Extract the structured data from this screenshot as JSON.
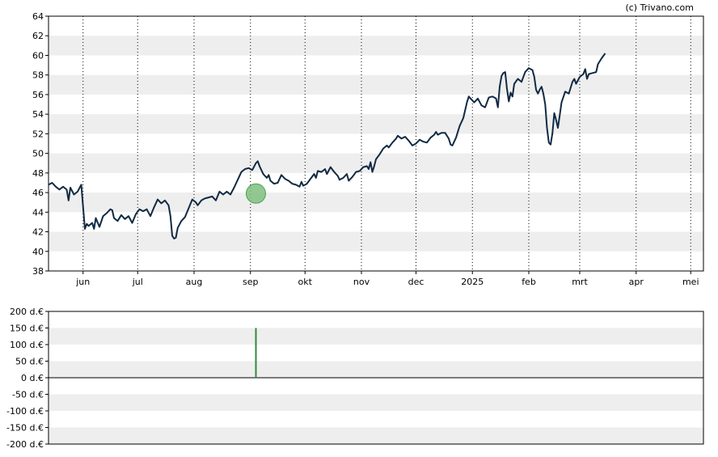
{
  "credit": "(c) Trivano.com",
  "colors": {
    "band": "#eeeeee",
    "frame": "#000000",
    "price_line": "#102a43",
    "marker_fill": "#7fbf7f",
    "marker_stroke": "#4f9f4f",
    "volume_bar": "#2e8b3e"
  },
  "chart_data": [
    {
      "type": "line",
      "x_ticks": [
        {
          "label": "jun",
          "day": 19
        },
        {
          "label": "jul",
          "day": 49
        },
        {
          "label": "aug",
          "day": 80
        },
        {
          "label": "sep",
          "day": 111
        },
        {
          "label": "okt",
          "day": 141
        },
        {
          "label": "nov",
          "day": 172
        },
        {
          "label": "dec",
          "day": 202
        },
        {
          "label": "2025",
          "day": 233
        },
        {
          "label": "feb",
          "day": 264
        },
        {
          "label": "mrt",
          "day": 292
        },
        {
          "label": "apr",
          "day": 323
        },
        {
          "label": "mei",
          "day": 353
        }
      ],
      "x_range": [
        0,
        360
      ],
      "y_ticks": [
        "38",
        "40",
        "42",
        "44",
        "46",
        "48",
        "50",
        "52",
        "54",
        "56",
        "58",
        "60",
        "62",
        "64"
      ],
      "ylim": [
        38,
        64
      ],
      "grid": "horizontal bands, vertical dotted month lines",
      "marker": {
        "day": 114,
        "value": 45.9
      },
      "series": [
        {
          "points": [
            [
              0,
              46.8
            ],
            [
              2,
              47
            ],
            [
              4,
              46.6
            ],
            [
              6,
              46.3
            ],
            [
              8,
              46.6
            ],
            [
              10,
              46.3
            ],
            [
              11,
              45.2
            ],
            [
              12,
              46.5
            ],
            [
              14,
              45.8
            ],
            [
              16,
              46.1
            ],
            [
              18,
              46.8
            ],
            [
              19,
              44.5
            ],
            [
              20,
              42.3
            ],
            [
              21,
              42.8
            ],
            [
              22,
              42.6
            ],
            [
              24,
              42.9
            ],
            [
              25,
              42.3
            ],
            [
              26,
              43.4
            ],
            [
              28,
              42.5
            ],
            [
              30,
              43.6
            ],
            [
              32,
              43.9
            ],
            [
              34,
              44.3
            ],
            [
              35,
              44.2
            ],
            [
              36,
              43.4
            ],
            [
              38,
              43.1
            ],
            [
              40,
              43.7
            ],
            [
              42,
              43.3
            ],
            [
              44,
              43.6
            ],
            [
              46,
              42.9
            ],
            [
              48,
              43.8
            ],
            [
              50,
              44.3
            ],
            [
              52,
              44.1
            ],
            [
              54,
              44.3
            ],
            [
              56,
              43.6
            ],
            [
              58,
              44.5
            ],
            [
              60,
              45.3
            ],
            [
              62,
              44.9
            ],
            [
              64,
              45.2
            ],
            [
              66,
              44.7
            ],
            [
              67,
              43.6
            ],
            [
              68,
              41.6
            ],
            [
              69,
              41.3
            ],
            [
              70,
              41.4
            ],
            [
              71,
              42.4
            ],
            [
              73,
              43.1
            ],
            [
              75,
              43.5
            ],
            [
              77,
              44.4
            ],
            [
              79,
              45.3
            ],
            [
              81,
              45
            ],
            [
              82,
              44.7
            ],
            [
              84,
              45.2
            ],
            [
              86,
              45.4
            ],
            [
              88,
              45.5
            ],
            [
              90,
              45.6
            ],
            [
              92,
              45.2
            ],
            [
              94,
              46.1
            ],
            [
              96,
              45.8
            ],
            [
              98,
              46.1
            ],
            [
              100,
              45.8
            ],
            [
              102,
              46.5
            ],
            [
              104,
              47.3
            ],
            [
              106,
              48.1
            ],
            [
              108,
              48.4
            ],
            [
              110,
              48.5
            ],
            [
              112,
              48.3
            ],
            [
              114,
              49
            ],
            [
              115,
              49.2
            ],
            [
              116,
              48.7
            ],
            [
              118,
              47.9
            ],
            [
              120,
              47.5
            ],
            [
              121,
              47.8
            ],
            [
              122,
              47.2
            ],
            [
              124,
              46.9
            ],
            [
              126,
              47
            ],
            [
              128,
              47.8
            ],
            [
              130,
              47.4
            ],
            [
              132,
              47.2
            ],
            [
              134,
              46.9
            ],
            [
              136,
              46.8
            ],
            [
              138,
              46.6
            ],
            [
              139,
              47.1
            ],
            [
              140,
              46.7
            ],
            [
              142,
              46.9
            ],
            [
              144,
              47.4
            ],
            [
              146,
              47.9
            ],
            [
              147,
              47.5
            ],
            [
              148,
              48.2
            ],
            [
              150,
              48.1
            ],
            [
              152,
              48.4
            ],
            [
              153,
              47.9
            ],
            [
              155,
              48.6
            ],
            [
              157,
              48.1
            ],
            [
              159,
              47.7
            ],
            [
              160,
              47.3
            ],
            [
              162,
              47.5
            ],
            [
              164,
              47.9
            ],
            [
              165,
              47.2
            ],
            [
              167,
              47.6
            ],
            [
              169,
              48.1
            ],
            [
              171,
              48.2
            ],
            [
              173,
              48.6
            ],
            [
              175,
              48.7
            ],
            [
              176,
              48.4
            ],
            [
              177,
              49.1
            ],
            [
              178,
              48.1
            ],
            [
              179,
              48.7
            ],
            [
              180,
              49.4
            ],
            [
              182,
              49.9
            ],
            [
              184,
              50.5
            ],
            [
              186,
              50.8
            ],
            [
              187,
              50.6
            ],
            [
              189,
              51.1
            ],
            [
              191,
              51.5
            ],
            [
              192,
              51.8
            ],
            [
              194,
              51.5
            ],
            [
              196,
              51.7
            ],
            [
              198,
              51.3
            ],
            [
              200,
              50.8
            ],
            [
              202,
              51
            ],
            [
              204,
              51.4
            ],
            [
              206,
              51.2
            ],
            [
              208,
              51.1
            ],
            [
              210,
              51.6
            ],
            [
              212,
              51.9
            ],
            [
              213,
              52.2
            ],
            [
              214,
              51.9
            ],
            [
              216,
              52.1
            ],
            [
              218,
              52.1
            ],
            [
              220,
              51.5
            ],
            [
              221,
              50.9
            ],
            [
              222,
              50.8
            ],
            [
              224,
              51.6
            ],
            [
              226,
              52.8
            ],
            [
              228,
              53.6
            ],
            [
              230,
              55.2
            ],
            [
              231,
              55.8
            ],
            [
              232,
              55.6
            ],
            [
              234,
              55.2
            ],
            [
              236,
              55.6
            ],
            [
              238,
              54.9
            ],
            [
              240,
              54.7
            ],
            [
              242,
              55.7
            ],
            [
              244,
              55.8
            ],
            [
              246,
              55.6
            ],
            [
              247,
              54.7
            ],
            [
              248,
              56.8
            ],
            [
              249,
              57.9
            ],
            [
              250,
              58.2
            ],
            [
              251,
              58.3
            ],
            [
              252,
              56.6
            ],
            [
              253,
              55.3
            ],
            [
              254,
              56.2
            ],
            [
              255,
              55.8
            ],
            [
              256,
              57.1
            ],
            [
              258,
              57.6
            ],
            [
              260,
              57.3
            ],
            [
              262,
              58.3
            ],
            [
              264,
              58.7
            ],
            [
              266,
              58.5
            ],
            [
              267,
              57.8
            ],
            [
              268,
              56.5
            ],
            [
              269,
              56.1
            ],
            [
              270,
              56.5
            ],
            [
              271,
              56.8
            ],
            [
              272,
              56.1
            ],
            [
              273,
              55
            ],
            [
              274,
              52.6
            ],
            [
              275,
              51.1
            ],
            [
              276,
              50.9
            ],
            [
              277,
              52.1
            ],
            [
              278,
              54.1
            ],
            [
              279,
              53.4
            ],
            [
              280,
              52.6
            ],
            [
              281,
              53.9
            ],
            [
              282,
              55.2
            ],
            [
              284,
              56.3
            ],
            [
              286,
              56.1
            ],
            [
              288,
              57.3
            ],
            [
              289,
              57.6
            ],
            [
              290,
              57.1
            ],
            [
              292,
              57.8
            ],
            [
              294,
              58.1
            ],
            [
              295,
              58.6
            ],
            [
              296,
              57.6
            ],
            [
              297,
              58.1
            ],
            [
              299,
              58.2
            ],
            [
              301,
              58.3
            ],
            [
              302,
              59.1
            ],
            [
              304,
              59.7
            ],
            [
              306,
              60.2
            ]
          ]
        }
      ]
    },
    {
      "type": "bar",
      "x_range": [
        0,
        360
      ],
      "y_ticks": [
        "200 d.€",
        "150 d.€",
        "100 d.€",
        "50 d.€",
        "0 d.€",
        "-50 d.€",
        "-100 d.€",
        "-150 d.€",
        "-200 d.€"
      ],
      "ylim": [
        -200,
        200
      ],
      "grid": "horizontal bands",
      "bars": [
        {
          "day": 114,
          "value": 150
        }
      ]
    }
  ]
}
